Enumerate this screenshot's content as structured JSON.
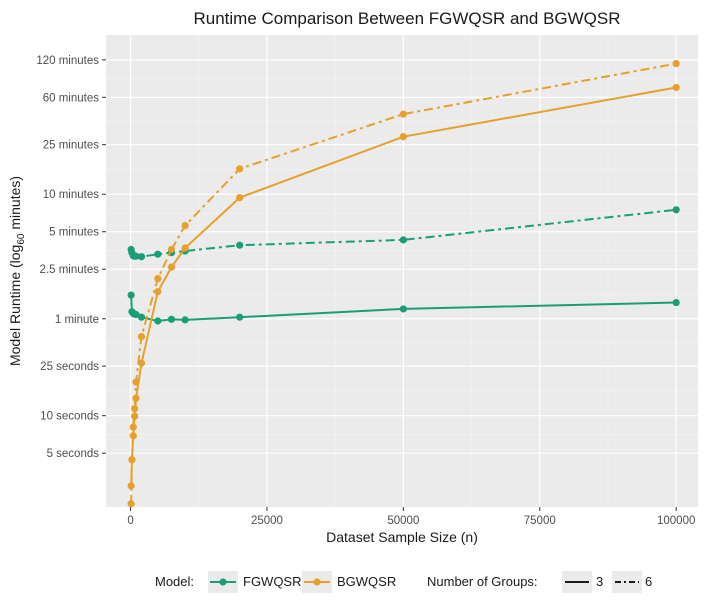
{
  "chart_data": {
    "type": "line",
    "title": "Runtime Comparison Between FGWQSR and BGWQSR",
    "xlabel": "Dataset Sample Size (n)",
    "ylabel_main": "Model Runtime (log",
    "ylabel_sub": "60",
    "ylabel_end": " minutes)",
    "y_scale": "log60",
    "y_unit": "minutes",
    "xlim": [
      -4500,
      104000
    ],
    "ylim_minutes": [
      0.0308,
      190
    ],
    "x_ticks": [
      {
        "value": 0,
        "label": "0"
      },
      {
        "value": 25000,
        "label": "25000"
      },
      {
        "value": 50000,
        "label": "50000"
      },
      {
        "value": 75000,
        "label": "75000"
      },
      {
        "value": 100000,
        "label": "100000"
      }
    ],
    "y_ticks": [
      {
        "value": 0.0833,
        "label": "5 seconds"
      },
      {
        "value": 0.1667,
        "label": "10 seconds"
      },
      {
        "value": 0.4167,
        "label": "25 seconds"
      },
      {
        "value": 1,
        "label": "1 minute"
      },
      {
        "value": 2.5,
        "label": "2.5 minutes"
      },
      {
        "value": 5,
        "label": "5 minutes"
      },
      {
        "value": 10,
        "label": "10 minutes"
      },
      {
        "value": 25,
        "label": "25 minutes"
      },
      {
        "value": 60,
        "label": "60 minutes"
      },
      {
        "value": 120,
        "label": "120 minutes"
      }
    ],
    "x_minor": [
      12500,
      37500,
      62500,
      87500
    ],
    "grid": true,
    "legend_position": "bottom",
    "colors": {
      "FGWQSR": "#1b9e77",
      "BGWQSR": "#e6a02b"
    },
    "series": [
      {
        "model": "FGWQSR",
        "groups": "3",
        "x": [
          100,
          250,
          500,
          750,
          1000,
          2000,
          5000,
          7500,
          10000,
          20000,
          50000,
          100000
        ],
        "y": [
          1.55,
          1.14,
          1.1,
          1.09,
          1.08,
          1.03,
          0.96,
          0.99,
          0.98,
          1.03,
          1.2,
          1.35
        ]
      },
      {
        "model": "FGWQSR",
        "groups": "6",
        "x": [
          100,
          250,
          500,
          750,
          1000,
          2000,
          5000,
          7500,
          10000,
          20000,
          50000,
          100000
        ],
        "y": [
          3.6,
          3.4,
          3.2,
          3.18,
          3.18,
          3.15,
          3.3,
          3.4,
          3.5,
          3.9,
          4.3,
          7.5
        ]
      },
      {
        "model": "BGWQSR",
        "groups": "3",
        "x": [
          100,
          250,
          500,
          750,
          1000,
          2000,
          5000,
          7500,
          10000,
          20000,
          50000,
          100000
        ],
        "y": [
          0.0455,
          0.0738,
          0.115,
          0.165,
          0.23,
          0.44,
          1.65,
          2.6,
          3.7,
          9.4,
          29.0,
          72.0
        ]
      },
      {
        "model": "BGWQSR",
        "groups": "6",
        "x": [
          100,
          250,
          500,
          750,
          1000,
          2000,
          5000,
          7500,
          10000,
          20000,
          50000,
          100000
        ],
        "y": [
          0.0327,
          0.0738,
          0.135,
          0.19,
          0.31,
          0.72,
          2.1,
          3.6,
          5.6,
          16.0,
          44.0,
          112.0
        ]
      }
    ],
    "legend": {
      "model_title": "Model:",
      "model_items": [
        "FGWQSR",
        "BGWQSR"
      ],
      "groups_title": "Number of Groups:",
      "groups_items": [
        "3",
        "6"
      ]
    }
  }
}
